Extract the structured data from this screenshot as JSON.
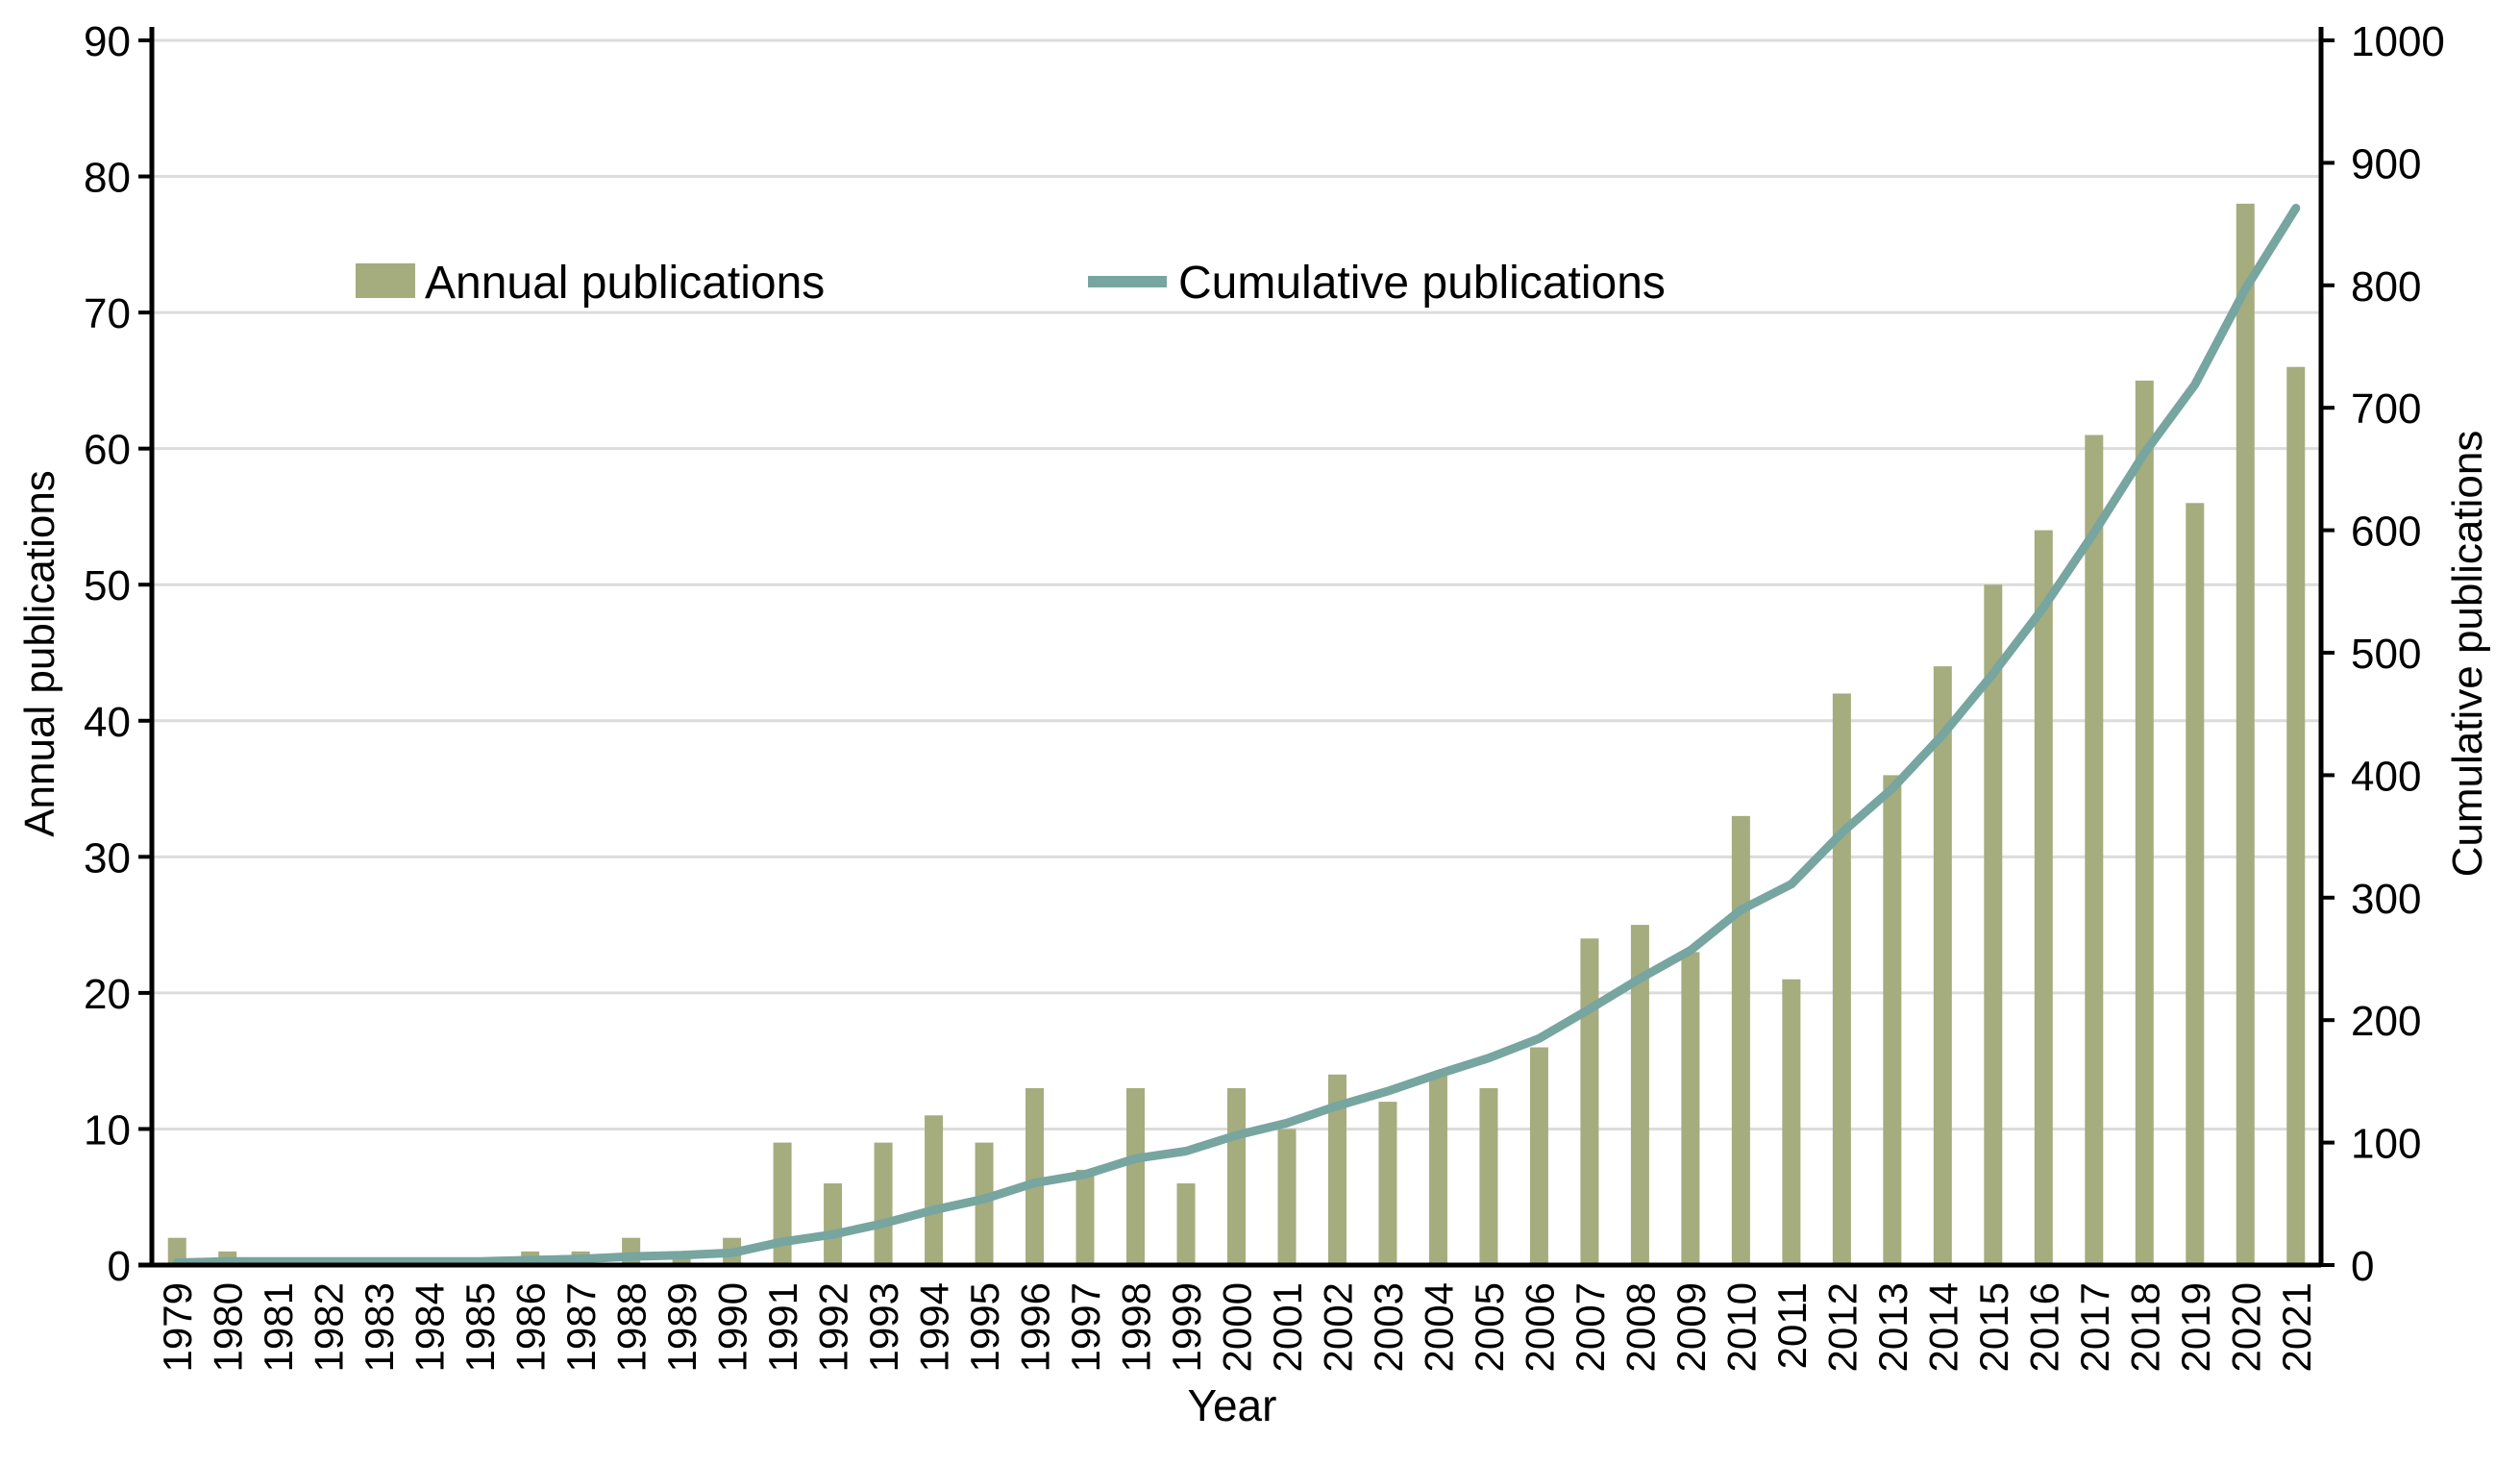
{
  "chart_data": {
    "type": "bar+line",
    "title": "",
    "categories": [
      "1979",
      "1980",
      "1981",
      "1982",
      "1983",
      "1984",
      "1985",
      "1986",
      "1987",
      "1988",
      "1989",
      "1990",
      "1991",
      "1992",
      "1993",
      "1994",
      "1995",
      "1996",
      "1997",
      "1998",
      "1999",
      "2000",
      "2001",
      "2002",
      "2003",
      "2004",
      "2005",
      "2006",
      "2007",
      "2008",
      "2009",
      "2010",
      "2011",
      "2012",
      "2013",
      "2014",
      "2015",
      "2016",
      "2017",
      "2018",
      "2019",
      "2020",
      "2021"
    ],
    "series": [
      {
        "name": "Annual publications",
        "type": "bar",
        "axis": "left",
        "color": "#a5ac7e",
        "values": [
          2,
          1,
          0,
          0,
          0,
          0,
          0,
          1,
          1,
          2,
          1,
          2,
          9,
          6,
          9,
          11,
          9,
          13,
          7,
          13,
          6,
          13,
          10,
          14,
          12,
          14,
          13,
          16,
          24,
          25,
          23,
          33,
          21,
          42,
          36,
          44,
          50,
          54,
          61,
          65,
          56,
          78,
          66
        ]
      },
      {
        "name": "Cumulative publications",
        "type": "line",
        "axis": "right",
        "color": "#77a5a0",
        "values": [
          2,
          3,
          3,
          3,
          3,
          3,
          3,
          4,
          5,
          7,
          8,
          10,
          19,
          25,
          34,
          45,
          54,
          67,
          74,
          87,
          93,
          106,
          116,
          130,
          142,
          156,
          169,
          185,
          209,
          234,
          257,
          290,
          311,
          353,
          389,
          433,
          483,
          537,
          598,
          663,
          719,
          797,
          863
        ]
      }
    ],
    "x_axis": {
      "label": "Year"
    },
    "left_axis": {
      "label": "Annual publications",
      "min": 0,
      "max": 90,
      "ticks": [
        0,
        10,
        20,
        30,
        40,
        50,
        60,
        70,
        80,
        90
      ]
    },
    "right_axis": {
      "label": "Cumulative publications",
      "min": 0,
      "max": 1000,
      "ticks": [
        0,
        100,
        200,
        300,
        400,
        500,
        600,
        700,
        800,
        900,
        1000
      ]
    },
    "legend": {
      "position": "top-center-inside",
      "items": [
        {
          "label": "Annual publications",
          "swatch": "bar",
          "color": "#a5ac7e"
        },
        {
          "label": "Cumulative publications",
          "swatch": "line",
          "color": "#77a5a0"
        }
      ]
    },
    "grid": true,
    "gridline_color": "#dcdcdc",
    "axis_color": "#000000",
    "background": "#ffffff"
  }
}
